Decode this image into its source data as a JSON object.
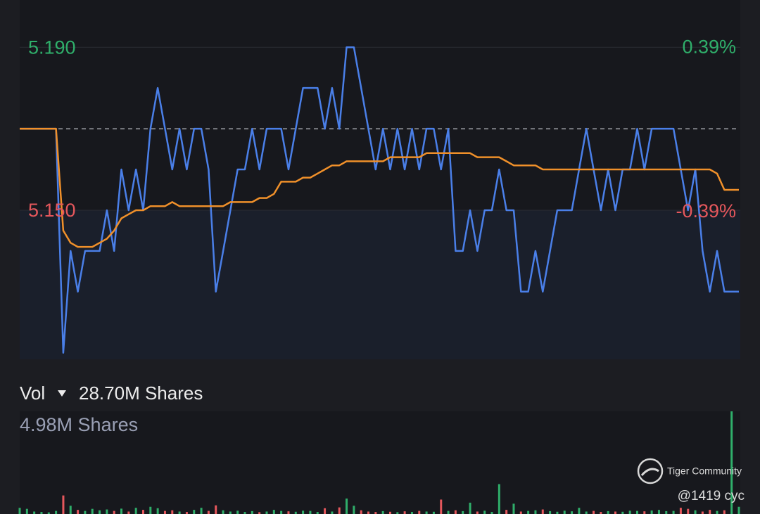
{
  "chart_data": [
    {
      "type": "line",
      "series": [
        {
          "color": "#4a7fe8",
          "values": [
            5.17,
            5.17,
            5.17,
            5.17,
            5.17,
            5.17,
            5.115,
            5.14,
            5.13,
            5.14,
            5.14,
            5.14,
            5.15,
            5.14,
            5.16,
            5.15,
            5.16,
            5.15,
            5.17,
            5.18,
            5.17,
            5.16,
            5.17,
            5.16,
            5.17,
            5.17,
            5.16,
            5.13,
            5.14,
            5.15,
            5.16,
            5.16,
            5.17,
            5.16,
            5.17,
            5.17,
            5.17,
            5.16,
            5.17,
            5.18,
            5.18,
            5.18,
            5.17,
            5.18,
            5.17,
            5.19,
            5.19,
            5.18,
            5.17,
            5.16,
            5.17,
            5.16,
            5.17,
            5.16,
            5.17,
            5.16,
            5.17,
            5.17,
            5.16,
            5.17,
            5.14,
            5.14,
            5.15,
            5.14,
            5.15,
            5.15,
            5.16,
            5.15,
            5.15,
            5.13,
            5.13,
            5.14,
            5.13,
            5.14,
            5.15,
            5.15,
            5.15,
            5.16,
            5.17,
            5.16,
            5.15,
            5.16,
            5.15,
            5.16,
            5.16,
            5.17,
            5.16,
            5.17,
            5.17,
            5.17,
            5.17,
            5.16,
            5.15,
            5.16,
            5.14,
            5.13,
            5.14,
            5.13,
            5.13,
            5.13
          ]
        },
        {
          "color": "#f0902a",
          "values": [
            5.17,
            5.17,
            5.17,
            5.17,
            5.17,
            5.17,
            5.145,
            5.142,
            5.141,
            5.141,
            5.141,
            5.142,
            5.143,
            5.145,
            5.148,
            5.149,
            5.15,
            5.15,
            5.151,
            5.151,
            5.151,
            5.152,
            5.151,
            5.151,
            5.151,
            5.151,
            5.151,
            5.151,
            5.151,
            5.152,
            5.152,
            5.152,
            5.152,
            5.153,
            5.153,
            5.154,
            5.157,
            5.157,
            5.157,
            5.158,
            5.158,
            5.159,
            5.16,
            5.161,
            5.161,
            5.162,
            5.162,
            5.162,
            5.162,
            5.162,
            5.162,
            5.163,
            5.163,
            5.163,
            5.163,
            5.163,
            5.164,
            5.164,
            5.164,
            5.164,
            5.164,
            5.164,
            5.164,
            5.163,
            5.163,
            5.163,
            5.163,
            5.162,
            5.161,
            5.161,
            5.161,
            5.161,
            5.16,
            5.16,
            5.16,
            5.16,
            5.16,
            5.16,
            5.16,
            5.16,
            5.16,
            5.16,
            5.16,
            5.16,
            5.16,
            5.16,
            5.16,
            5.16,
            5.16,
            5.16,
            5.16,
            5.16,
            5.16,
            5.16,
            5.16,
            5.16,
            5.159,
            5.155,
            5.155,
            5.155
          ]
        }
      ],
      "prev_close": 5.17,
      "ylim": [
        5.1134,
        5.2016
      ],
      "yticks": [
        {
          "value": 5.19,
          "label": "5.190"
        },
        {
          "value": 5.15,
          "label": "5.150"
        }
      ],
      "y2lim": [
        -1.0948,
        0.6112
      ],
      "y2ticks": [
        {
          "value": 0.39,
          "label": "0.39%"
        },
        {
          "value": -0.39,
          "label": "-0.39%"
        }
      ],
      "up_color": "#2fae6a",
      "down_color": "#e5575c",
      "grid": true
    },
    {
      "type": "bar",
      "title": "Vol",
      "subtitle": "28.70M Shares",
      "values": [
        300000,
        250000,
        120000,
        100000,
        80000,
        150000,
        900000,
        400000,
        200000,
        150000,
        250000,
        180000,
        220000,
        150000,
        260000,
        120000,
        300000,
        200000,
        350000,
        280000,
        150000,
        180000,
        120000,
        100000,
        200000,
        300000,
        150000,
        420000,
        180000,
        120000,
        160000,
        100000,
        140000,
        90000,
        120000,
        200000,
        150000,
        130000,
        110000,
        160000,
        150000,
        100000,
        280000,
        120000,
        320000,
        750000,
        400000,
        180000,
        120000,
        100000,
        140000,
        110000,
        90000,
        130000,
        100000,
        150000,
        120000,
        110000,
        700000,
        150000,
        180000,
        140000,
        550000,
        120000,
        160000,
        100000,
        1450000,
        200000,
        500000,
        120000,
        150000,
        180000,
        220000,
        140000,
        110000,
        160000,
        130000,
        300000,
        120000,
        150000,
        100000,
        140000,
        120000,
        110000,
        160000,
        150000,
        130000,
        170000,
        200000,
        140000,
        150000,
        300000,
        250000,
        180000,
        120000,
        200000,
        150000,
        180000,
        4980000,
        350000
      ],
      "ylim": [
        0,
        4980000
      ],
      "yticks": [
        {
          "value": 4980000,
          "label": "4.98M Shares"
        }
      ]
    }
  ],
  "watermark": {
    "brand": "Tiger Community",
    "user": "@1419 cyc"
  }
}
